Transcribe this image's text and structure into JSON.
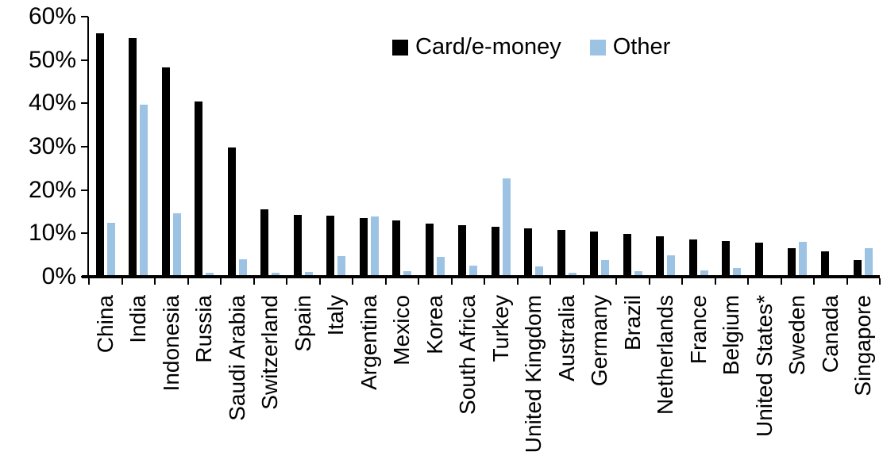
{
  "chart_data": {
    "type": "bar",
    "title": "",
    "xlabel": "",
    "ylabel": "",
    "grid": false,
    "legend_position": "top-center",
    "y_axis": {
      "min": 0,
      "max": 60,
      "step": 10,
      "tick_labels": [
        "0%",
        "10%",
        "20%",
        "30%",
        "40%",
        "50%",
        "60%"
      ]
    },
    "categories": [
      "China",
      "India",
      "Indonesia",
      "Russia",
      "Saudi Arabia",
      "Switzerland",
      "Spain",
      "Italy",
      "Argentina",
      "Mexico",
      "Korea",
      "South Africa",
      "Turkey",
      "United Kingdom",
      "Australia",
      "Germany",
      "Brazil",
      "Netherlands",
      "France",
      "Belgium",
      "United States*",
      "Sweden",
      "Canada",
      "Singapore"
    ],
    "series": [
      {
        "name": "Card/e-money",
        "color": "#000000",
        "values": [
          56.2,
          55.0,
          48.3,
          40.5,
          29.9,
          15.6,
          14.2,
          14.0,
          13.5,
          12.9,
          12.3,
          11.8,
          11.6,
          11.1,
          10.8,
          10.5,
          9.9,
          9.3,
          8.6,
          8.2,
          7.9,
          6.5,
          5.9,
          3.9
        ]
      },
      {
        "name": "Other",
        "color": "#9cc3e4",
        "values": [
          12.4,
          39.7,
          14.6,
          1.0,
          4.0,
          0.9,
          1.1,
          4.7,
          13.9,
          1.3,
          4.6,
          2.5,
          22.6,
          2.4,
          1.0,
          3.9,
          1.2,
          4.9,
          1.5,
          2.0,
          0.3,
          8.1,
          0.0,
          6.6
        ]
      }
    ]
  }
}
